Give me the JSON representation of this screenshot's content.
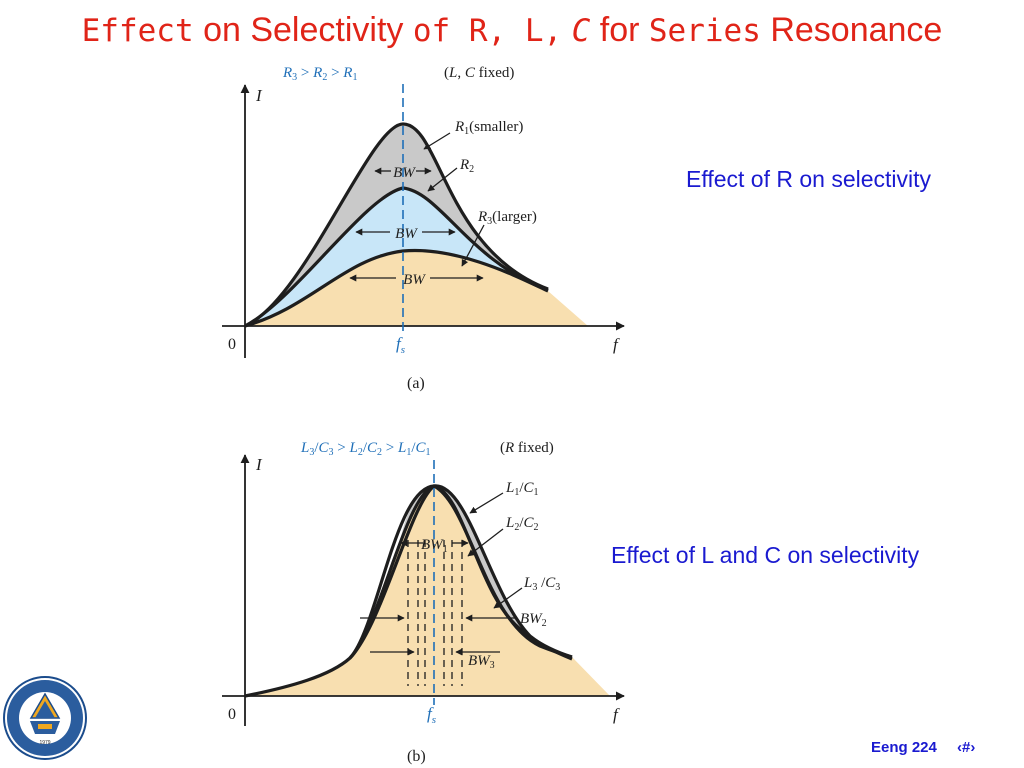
{
  "slide": {
    "title": {
      "w1": "Effect",
      "w2": "on Selectivity",
      "w3": "of R, L,",
      "w4": "C",
      "w5": "for",
      "w6": "Series",
      "w7": "Resonance"
    },
    "side_label_r": "Effect of R on selectivity",
    "side_label_lc": "Effect of L and C on selectivity",
    "footer_course": "Eeng 224",
    "footer_page": "‹#›"
  },
  "figure_a": {
    "relation": {
      "r3": "R",
      "s3": "3",
      "gt1": " > ",
      "r2": "R",
      "s2": "2",
      "gt2": " > ",
      "r1": "R",
      "s1": "1"
    },
    "fixed": {
      "open": "(",
      "l": "L",
      "comma": ", ",
      "c": "C",
      "rest": " fixed)"
    },
    "y_axis": "I",
    "x_axis": "f",
    "origin": "0",
    "fs": {
      "f": "f",
      "s": "s"
    },
    "curve_r1": {
      "r": "R",
      "sub": "1",
      "note": "(smaller)"
    },
    "curve_r2": {
      "r": "R",
      "sub": "2"
    },
    "curve_r3": {
      "r": "R",
      "sub": "3",
      "note": "(larger)"
    },
    "bw": "BW",
    "caption": "(a)"
  },
  "figure_b": {
    "relation": {
      "l3": "L",
      "s3a": "3",
      "sl1": "/",
      "c3": "C",
      "s3b": "3",
      "gt1": " > ",
      "l2": "L",
      "s2a": "2",
      "sl2": "/",
      "c2": "C",
      "s2b": "2",
      "gt2": " > ",
      "l1": "L",
      "s1a": "1",
      "sl3": "/",
      "c1": "C",
      "s1b": "1"
    },
    "fixed": {
      "open": "(",
      "r": "R",
      "rest": "  fixed)"
    },
    "y_axis": "I",
    "x_axis": "f",
    "origin": "0",
    "fs": {
      "f": "f",
      "s": "s"
    },
    "curve_lc1": {
      "l": "L",
      "a": "1",
      "slash": "/",
      "c": "C",
      "b": "1"
    },
    "curve_lc2": {
      "l": "L",
      "a": "2",
      "slash": "/",
      "c": "C",
      "b": "2"
    },
    "curve_lc3": {
      "l": "L",
      "a": "3",
      "slash": " /",
      "c": "C",
      "b": "3"
    },
    "bw1": {
      "bw": "BW",
      "sub": "1"
    },
    "bw2": {
      "bw": "BW",
      "sub": "2"
    },
    "bw3": {
      "bw": "BW",
      "sub": "3"
    },
    "caption": "(b)"
  },
  "logo": {
    "year": "1979",
    "ring_text": "EASTERN MEDITERRANEAN UNIVERSITY"
  },
  "colors": {
    "title": "#e02418",
    "blue_text": "#1a1ad0",
    "diagram_blue": "#1f6fb8",
    "fill_tan": "#f8dfb0",
    "fill_light_blue": "#c8e6f8",
    "fill_gray": "#c9c9c9",
    "curve": "#1e1e1e"
  }
}
